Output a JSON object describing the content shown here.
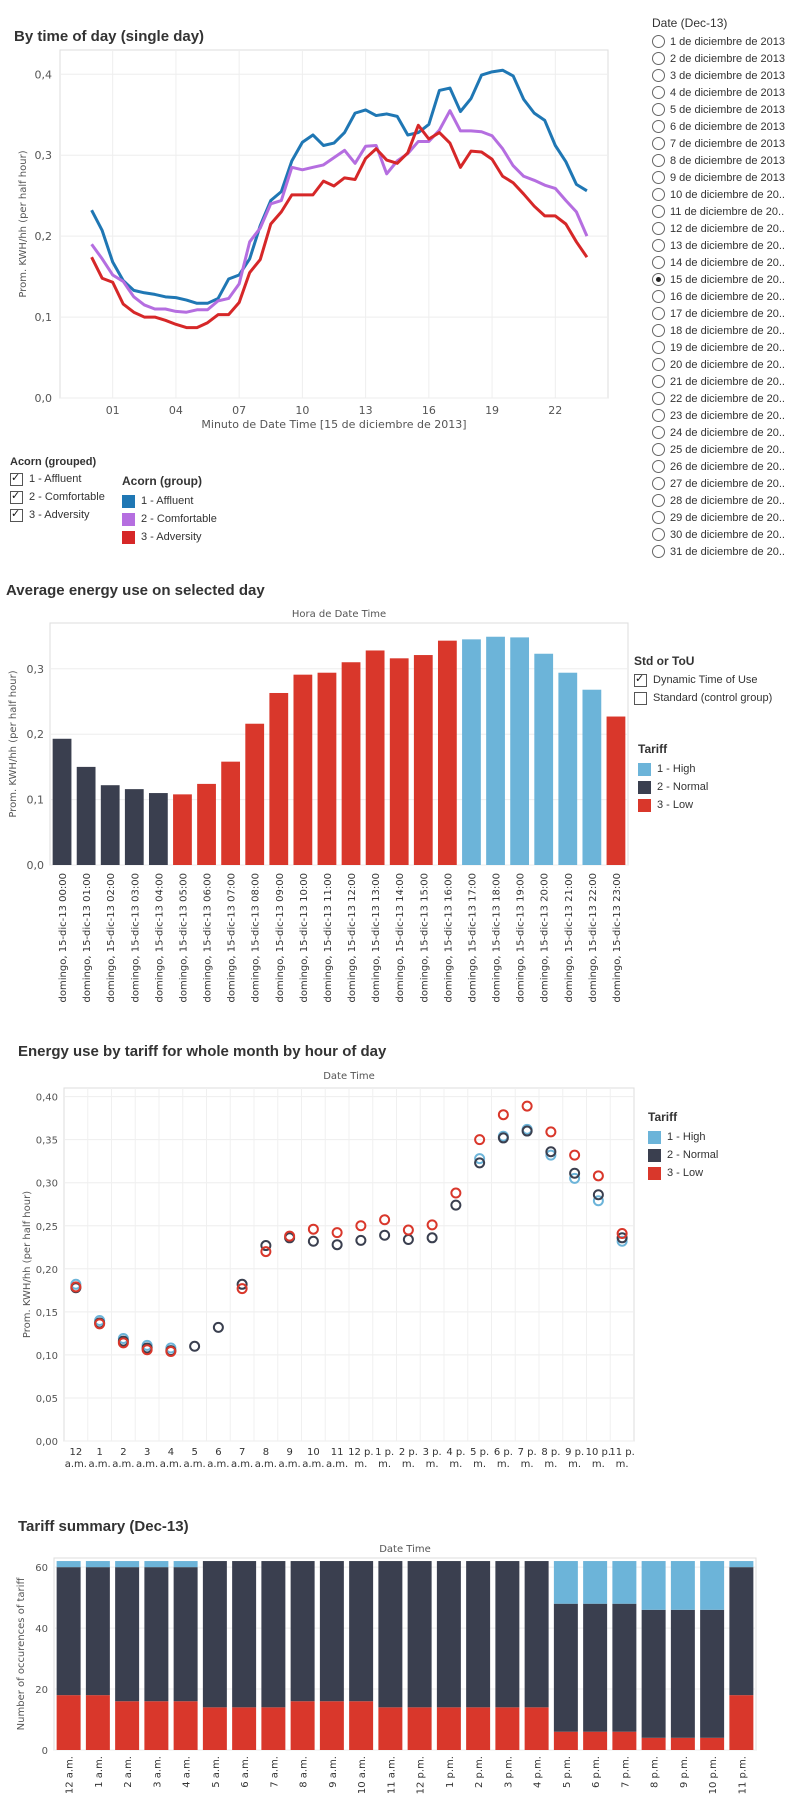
{
  "chart1": {
    "title": "By time of day (single day)",
    "ylabel": "Prom. KWH/hh (per half hour)",
    "xlabel": "Minuto de Date Time [15 de diciembre de 2013]",
    "xticks": [
      "01",
      "04",
      "07",
      "10",
      "13",
      "16",
      "19",
      "22"
    ],
    "yticks": [
      "0,0",
      "0,1",
      "0,2",
      "0,3",
      "0,4"
    ]
  },
  "chart_data": [
    {
      "type": "line",
      "title": "By time of day (single day)",
      "xlabel": "Minuto de Date Time [15 de diciembre de 2013]",
      "ylabel": "Prom. KWH/hh (per half hour)",
      "ylim": [
        0,
        0.43
      ],
      "x": [
        0,
        0.5,
        1,
        1.5,
        2,
        2.5,
        3,
        3.5,
        4,
        4.5,
        5,
        5.5,
        6,
        6.5,
        7,
        7.5,
        8,
        8.5,
        9,
        9.5,
        10,
        10.5,
        11,
        11.5,
        12,
        12.5,
        13,
        13.5,
        14,
        14.5,
        15,
        15.5,
        16,
        16.5,
        17,
        17.5,
        18,
        18.5,
        19,
        19.5,
        20,
        20.5,
        21,
        21.5,
        22,
        22.5,
        23,
        23.5
      ],
      "series": [
        {
          "name": "1 - Affluent",
          "color": "#1f77b4",
          "values": [
            0.232,
            0.207,
            0.168,
            0.145,
            0.133,
            0.13,
            0.128,
            0.125,
            0.124,
            0.121,
            0.117,
            0.117,
            0.123,
            0.147,
            0.152,
            0.172,
            0.213,
            0.244,
            0.255,
            0.293,
            0.316,
            0.325,
            0.312,
            0.315,
            0.328,
            0.352,
            0.356,
            0.349,
            0.351,
            0.348,
            0.325,
            0.328,
            0.338,
            0.38,
            0.383,
            0.354,
            0.37,
            0.399,
            0.403,
            0.405,
            0.398,
            0.369,
            0.352,
            0.343,
            0.312,
            0.292,
            0.264,
            0.256
          ]
        },
        {
          "name": "2 - Comfortable",
          "color": "#b56ee0",
          "values": [
            0.19,
            0.172,
            0.152,
            0.144,
            0.125,
            0.115,
            0.11,
            0.11,
            0.107,
            0.106,
            0.109,
            0.109,
            0.12,
            0.123,
            0.141,
            0.193,
            0.21,
            0.24,
            0.244,
            0.285,
            0.282,
            0.285,
            0.288,
            0.297,
            0.306,
            0.29,
            0.311,
            0.312,
            0.277,
            0.293,
            0.302,
            0.317,
            0.317,
            0.331,
            0.355,
            0.33,
            0.33,
            0.329,
            0.324,
            0.308,
            0.287,
            0.274,
            0.269,
            0.263,
            0.259,
            0.244,
            0.23,
            0.2
          ]
        },
        {
          "name": "3 - Adversity",
          "color": "#d62728",
          "values": [
            0.174,
            0.148,
            0.143,
            0.116,
            0.106,
            0.1,
            0.1,
            0.096,
            0.091,
            0.087,
            0.087,
            0.093,
            0.103,
            0.103,
            0.118,
            0.155,
            0.171,
            0.215,
            0.23,
            0.251,
            0.251,
            0.251,
            0.268,
            0.262,
            0.272,
            0.27,
            0.296,
            0.308,
            0.294,
            0.29,
            0.303,
            0.337,
            0.32,
            0.328,
            0.315,
            0.285,
            0.305,
            0.304,
            0.295,
            0.274,
            0.266,
            0.252,
            0.237,
            0.225,
            0.225,
            0.215,
            0.193,
            0.174
          ]
        }
      ]
    },
    {
      "type": "bar",
      "title": "Average energy use on selected day",
      "header": "Hora de Date Time",
      "ylabel": "Prom. KWH/hh (per half hour)",
      "ylim": [
        0,
        0.37
      ],
      "categories": [
        "domingo, 15-dic-13 00:00",
        "domingo, 15-dic-13 01:00",
        "domingo, 15-dic-13 02:00",
        "domingo, 15-dic-13 03:00",
        "domingo, 15-dic-13 04:00",
        "domingo, 15-dic-13 05:00",
        "domingo, 15-dic-13 06:00",
        "domingo, 15-dic-13 07:00",
        "domingo, 15-dic-13 08:00",
        "domingo, 15-dic-13 09:00",
        "domingo, 15-dic-13 10:00",
        "domingo, 15-dic-13 11:00",
        "domingo, 15-dic-13 12:00",
        "domingo, 15-dic-13 13:00",
        "domingo, 15-dic-13 14:00",
        "domingo, 15-dic-13 15:00",
        "domingo, 15-dic-13 16:00",
        "domingo, 15-dic-13 17:00",
        "domingo, 15-dic-13 18:00",
        "domingo, 15-dic-13 19:00",
        "domingo, 15-dic-13 20:00",
        "domingo, 15-dic-13 21:00",
        "domingo, 15-dic-13 22:00",
        "domingo, 15-dic-13 23:00"
      ],
      "values": [
        0.193,
        0.15,
        0.122,
        0.116,
        0.11,
        0.108,
        0.124,
        0.158,
        0.216,
        0.263,
        0.291,
        0.294,
        0.31,
        0.328,
        0.316,
        0.321,
        0.343,
        0.345,
        0.349,
        0.348,
        0.323,
        0.294,
        0.268,
        0.227
      ],
      "tariff": [
        "2",
        "2",
        "2",
        "2",
        "2",
        "3",
        "3",
        "3",
        "3",
        "3",
        "3",
        "3",
        "3",
        "3",
        "3",
        "3",
        "3",
        "1",
        "1",
        "1",
        "1",
        "1",
        "1",
        "3"
      ],
      "yticks": [
        "0,0",
        "0,1",
        "0,2",
        "0,3"
      ]
    },
    {
      "type": "scatter",
      "title": "Energy use by tariff for whole month by hour of day",
      "header": "Date Time",
      "ylabel": "Prom. KWH/hh (per half hour)",
      "ylim": [
        0,
        0.41
      ],
      "categories": [
        "12 a.m.",
        "1 a.m.",
        "2 a.m.",
        "3 a.m.",
        "4 a.m.",
        "5 a.m.",
        "6 a.m.",
        "7 a.m.",
        "8 a.m.",
        "9 a.m.",
        "10 a.m.",
        "11 a.m.",
        "12 p. m.",
        "1 p. m.",
        "2 p. m.",
        "3 p. m.",
        "4 p. m.",
        "5 p. m.",
        "6 p. m.",
        "7 p. m.",
        "8 p. m.",
        "9 p. m.",
        "10 p. m.",
        "11 p. m."
      ],
      "series": [
        {
          "name": "1 - High",
          "color": "#6cb4d9",
          "values": [
            0.182,
            0.14,
            0.119,
            0.111,
            0.108,
            null,
            null,
            null,
            null,
            null,
            null,
            null,
            null,
            null,
            null,
            null,
            null,
            0.328,
            0.354,
            0.362,
            0.332,
            0.305,
            0.279,
            0.232
          ]
        },
        {
          "name": "2 - Normal",
          "color": "#3a3f4f",
          "values": [
            0.178,
            0.137,
            0.116,
            0.108,
            0.105,
            0.11,
            0.132,
            0.182,
            0.227,
            0.236,
            0.232,
            0.228,
            0.233,
            0.239,
            0.234,
            0.236,
            0.274,
            0.323,
            0.352,
            0.36,
            0.336,
            0.311,
            0.286,
            0.236
          ]
        },
        {
          "name": "3 - Low",
          "color": "#d9372b",
          "values": [
            0.179,
            0.136,
            0.114,
            0.106,
            0.104,
            null,
            null,
            0.177,
            0.22,
            0.238,
            0.246,
            0.242,
            0.25,
            0.257,
            0.245,
            0.251,
            0.288,
            0.35,
            0.379,
            0.389,
            0.359,
            0.332,
            0.308,
            0.241
          ]
        }
      ],
      "yticks": [
        "0,00",
        "0,05",
        "0,10",
        "0,15",
        "0,20",
        "0,25",
        "0,30",
        "0,35",
        "0,40"
      ]
    },
    {
      "type": "bar",
      "stacked": true,
      "title": "Tariff summary (Dec-13)",
      "header": "Date Time",
      "ylabel": "Number of occurences of tariff",
      "ylim": [
        0,
        63
      ],
      "categories": [
        "12 a.m.",
        "1 a.m.",
        "2 a.m.",
        "3 a.m.",
        "4 a.m.",
        "5 a.m.",
        "6 a.m.",
        "7 a.m.",
        "8 a.m.",
        "9 a.m.",
        "10 a.m.",
        "11 a.m.",
        "12 p.m.",
        "1 p.m.",
        "2 p.m.",
        "3 p.m.",
        "4 p.m.",
        "5 p.m.",
        "6 p.m.",
        "7 p.m.",
        "8 p.m.",
        "9 p.m.",
        "10 p.m.",
        "11 p.m."
      ],
      "series": [
        {
          "name": "3 - Low",
          "color": "#d9372b",
          "values": [
            18,
            18,
            16,
            16,
            16,
            14,
            14,
            14,
            16,
            16,
            16,
            14,
            14,
            14,
            14,
            14,
            14,
            6,
            6,
            6,
            4,
            4,
            4,
            18
          ]
        },
        {
          "name": "2 - Normal",
          "color": "#3a3f4f",
          "values": [
            42,
            42,
            44,
            44,
            44,
            48,
            48,
            48,
            46,
            46,
            46,
            48,
            48,
            48,
            48,
            48,
            48,
            42,
            42,
            42,
            42,
            42,
            42,
            42
          ]
        },
        {
          "name": "1 - High",
          "color": "#6cb4d9",
          "values": [
            2,
            2,
            2,
            2,
            2,
            0,
            0,
            0,
            0,
            0,
            0,
            0,
            0,
            0,
            0,
            0,
            0,
            14,
            14,
            14,
            16,
            16,
            16,
            2
          ]
        }
      ],
      "yticks": [
        "0",
        "20",
        "40",
        "60"
      ]
    }
  ],
  "acorn_filter": {
    "title": "Acorn (grouped)",
    "items": [
      {
        "label": "1 - Affluent",
        "checked": true
      },
      {
        "label": "2 - Comfortable",
        "checked": true
      },
      {
        "label": "3 - Adversity",
        "checked": true
      }
    ]
  },
  "acorn_legend": {
    "title": "Acorn (group)",
    "items": [
      {
        "label": "1 - Affluent",
        "color": "#1f77b4"
      },
      {
        "label": "2 - Comfortable",
        "color": "#b56ee0"
      },
      {
        "label": "3 - Adversity",
        "color": "#d62728"
      }
    ]
  },
  "date_filter": {
    "title": "Date (Dec-13)",
    "selected_index": 14,
    "items": [
      "1 de diciembre de 2013",
      "2 de diciembre de 2013",
      "3 de diciembre de 2013",
      "4 de diciembre de 2013",
      "5 de diciembre de 2013",
      "6 de diciembre de 2013",
      "7 de diciembre de 2013",
      "8 de diciembre de 2013",
      "9 de diciembre de 2013",
      "10 de diciembre de 20..",
      "11 de diciembre de 20..",
      "12 de diciembre de 20..",
      "13 de diciembre de 20..",
      "14 de diciembre de 20..",
      "15 de diciembre de 20..",
      "16 de diciembre de 20..",
      "17 de diciembre de 20..",
      "18 de diciembre de 20..",
      "19 de diciembre de 20..",
      "20 de diciembre de 20..",
      "21 de diciembre de 20..",
      "22 de diciembre de 20..",
      "23 de diciembre de 20..",
      "24 de diciembre de 20..",
      "25 de diciembre de 20..",
      "26 de diciembre de 20..",
      "27 de diciembre de 20..",
      "28 de diciembre de 20..",
      "29 de diciembre de 20..",
      "30 de diciembre de 20..",
      "31 de diciembre de 20.."
    ]
  },
  "stdtou_filter": {
    "title": "Std or ToU",
    "items": [
      {
        "label": "Dynamic Time of Use",
        "checked": true
      },
      {
        "label": "Standard (control group)",
        "checked": false
      }
    ]
  },
  "tariff_legend": {
    "title": "Tariff",
    "items": [
      {
        "label": "1 - High",
        "color": "#6cb4d9"
      },
      {
        "label": "2 - Normal",
        "color": "#3a3f4f"
      },
      {
        "label": "3 - Low",
        "color": "#d9372b"
      }
    ]
  },
  "scatter_legend": {
    "title": "Tariff",
    "items": [
      {
        "label": "1 - High",
        "color": "#6cb4d9"
      },
      {
        "label": "2 - Normal",
        "color": "#3a3f4f"
      },
      {
        "label": "3 - Low",
        "color": "#d9372b"
      }
    ]
  }
}
